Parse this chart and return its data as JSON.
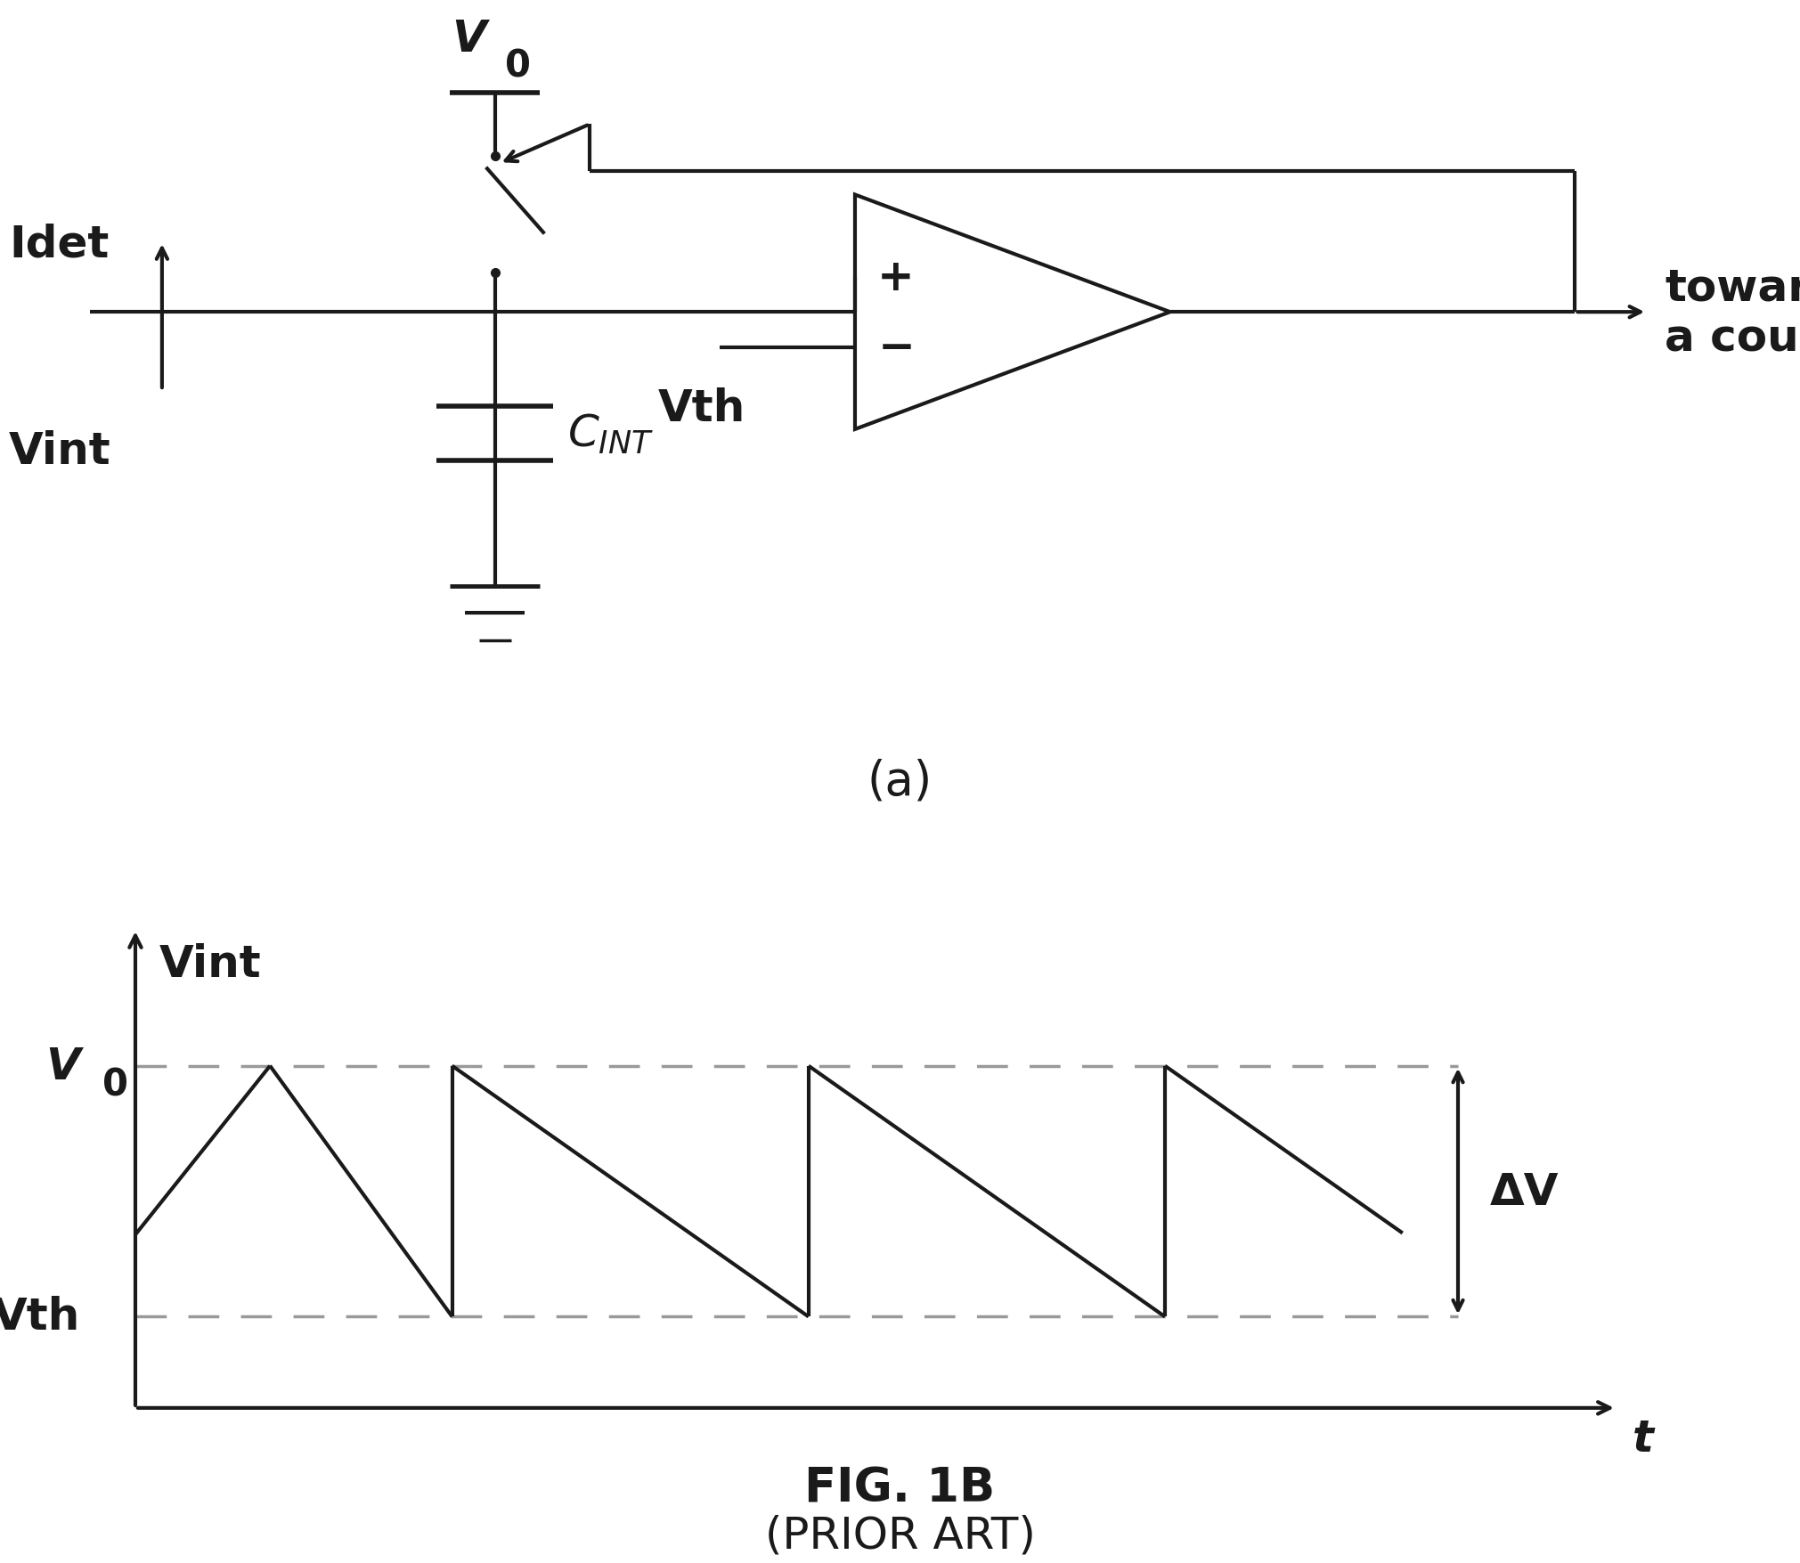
{
  "bg_color": "#ffffff",
  "line_color": "#1a1a1a",
  "dashed_color": "#999999",
  "fig_width": 20.21,
  "fig_height": 17.56,
  "caption_a": "(a)",
  "caption_fig": "FIG. 1B",
  "caption_prior": "(PRIOR ART)",
  "label_V0_top": "V",
  "label_V0_sub": "0",
  "label_Idet": "Idet",
  "label_Vint_circuit": "Vint",
  "label_CINT": "$C_{INT}$",
  "label_Vth_circuit": "Vth",
  "label_towards": "towards\na counter",
  "label_Vint_graph": "Vint",
  "label_V0_graph_main": "V",
  "label_V0_graph_sub": "0",
  "label_Vth_graph": "Vth",
  "label_DV": "ΔV",
  "label_t": "t",
  "font_size_large": 36,
  "font_size_medium": 30,
  "font_size_small": 26,
  "font_size_caption": 38
}
